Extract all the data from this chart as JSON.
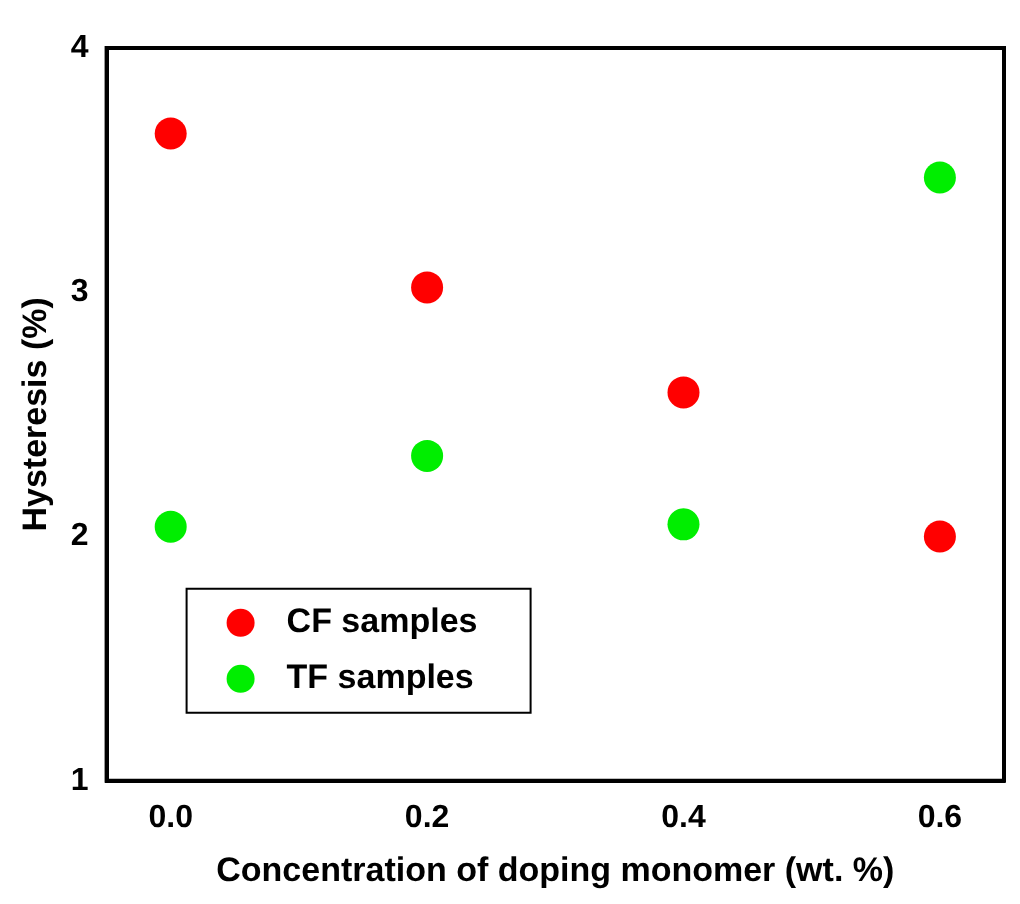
{
  "chart_data": {
    "type": "scatter",
    "xlabel": "Concentration of doping monomer (wt. %)",
    "ylabel": "Hysteresis (%)",
    "x": [
      0,
      0.2,
      0.4,
      0.6
    ],
    "series": [
      {
        "name": "CF samples",
        "color": "#ff0000",
        "values": [
          3.65,
          3.02,
          2.59,
          2.0
        ]
      },
      {
        "name": "TF samples",
        "color": "#00ee00",
        "values": [
          2.04,
          2.33,
          2.05,
          3.47
        ]
      }
    ],
    "xlim": [
      -0.05,
      0.65
    ],
    "xticks": [
      {
        "value": 0,
        "label": "0.0"
      },
      0.2,
      0.4,
      0.6
    ],
    "ylim": [
      1,
      4
    ],
    "yticks": [
      1,
      2,
      3,
      4
    ],
    "grid": false,
    "legend": "bottom left",
    "marker": "circle"
  }
}
